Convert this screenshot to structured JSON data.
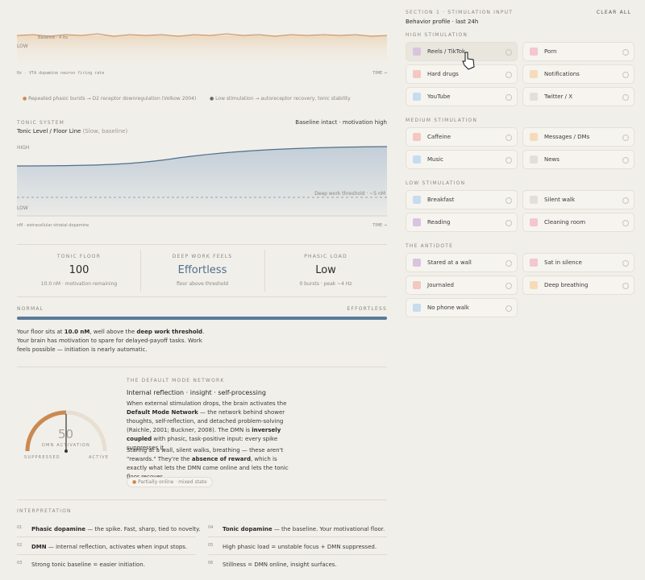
{
  "phasic_chart": {
    "baseline_label": "Baseline · 4 Hz",
    "low_label": "LOW",
    "axis_label": "Hz · VTA dopamine neuron firing rate",
    "time_label": "TIME →"
  },
  "legend": [
    "Repeated phasic bursts → D2 receptor downregulation (Volkow 2004)",
    "Low stimulation → autoreceptor recovery, tonic stability"
  ],
  "tonic": {
    "eyebrow": "TONIC SYSTEM",
    "title": "Tonic Level / Floor Line",
    "subtitle": "(Slow, baseline)",
    "status": "Baseline intact · motivation high",
    "high_label": "HIGH",
    "low_label": "LOW",
    "threshold_label": "Deep work threshold · ~5 nM",
    "axis_label": "nM · extracellular striatal dopamine",
    "time_label": "TIME →"
  },
  "stats": [
    {
      "label": "TONIC FLOOR",
      "value": "100",
      "note": "10.0 nM · motivation remaining"
    },
    {
      "label": "DEEP WORK FEELS",
      "value": "Effortless",
      "note": "floor above threshold"
    },
    {
      "label": "PHASIC LOAD",
      "value": "Low",
      "note": "0 bursts · peak ~4 Hz"
    }
  ],
  "meter": {
    "left": "NORMAL",
    "right": "EFFORTLESS"
  },
  "summary": [
    "Your floor sits at ",
    "10.0 nM",
    ", well above the ",
    "deep work threshold",
    ". Your brain has motivation to spare for delayed-payoff tasks. Work feels possible — initiation is nearly automatic."
  ],
  "dmn": {
    "eyebrow": "THE DEFAULT MODE NETWORK",
    "title": "Internal reflection · insight · self-processing",
    "gauge_value": "50",
    "gauge_label": "DMN ACTIVATION",
    "gauge_left": "SUPPRESSED",
    "gauge_right": "ACTIVE",
    "para1": [
      "When external stimulation drops, the brain activates the ",
      "Default Mode Network",
      " — the network behind shower thoughts, self-reflection, and detached problem-solving (Raichle, 2001; Buckner, 2008). The DMN is ",
      "inversely coupled",
      " with phasic, task-positive input: every spike suppresses it."
    ],
    "para2": [
      "Staring at a wall, silent walks, breathing — these aren't \"rewards.\" They're the ",
      "absence of reward",
      ", which is exactly what lets the DMN come online and lets the tonic floor recover."
    ],
    "status": "Partially online · mixed state"
  },
  "interpretation": {
    "title": "INTERPRETATION",
    "items": [
      {
        "num": "01",
        "term": "Phasic dopamine",
        "text": " — the spike. Fast, sharp, tied to novelty."
      },
      {
        "num": "02",
        "term": "DMN",
        "text": " — internal reflection, activates when input stops."
      },
      {
        "num": "03",
        "text": "Strong tonic baseline = easier initiation."
      },
      {
        "num": "04",
        "term": "Tonic dopamine",
        "text": " — the baseline. Your motivational floor."
      },
      {
        "num": "05",
        "text": "High phasic load = unstable focus + DMN suppressed."
      },
      {
        "num": "06",
        "text": "Stillness = DMN online, insight surfaces."
      }
    ]
  },
  "input": {
    "eyebrow": "SECTION 1 · STIMULATION INPUT",
    "action": "CLEAR ALL",
    "subtitle": "Behavior profile · last 24h",
    "groups": [
      {
        "title": "HIGH STIMULATION",
        "items": [
          "Reels / TikTok",
          "Porn",
          "Hard drugs",
          "Notifications",
          "YouTube",
          "Twitter / X"
        ]
      },
      {
        "title": "MEDIUM STIMULATION",
        "items": [
          "Caffeine",
          "Messages / DMs",
          "Music",
          "News"
        ]
      },
      {
        "title": "LOW STIMULATION",
        "items": [
          "Breakfast",
          "Silent walk",
          "Reading",
          "Cleaning room"
        ]
      },
      {
        "title": "THE ANTIDOTE",
        "items": [
          "Stared at a wall",
          "Sat in silence",
          "Journaled",
          "Deep breathing",
          "No phone walk"
        ]
      }
    ]
  }
}
